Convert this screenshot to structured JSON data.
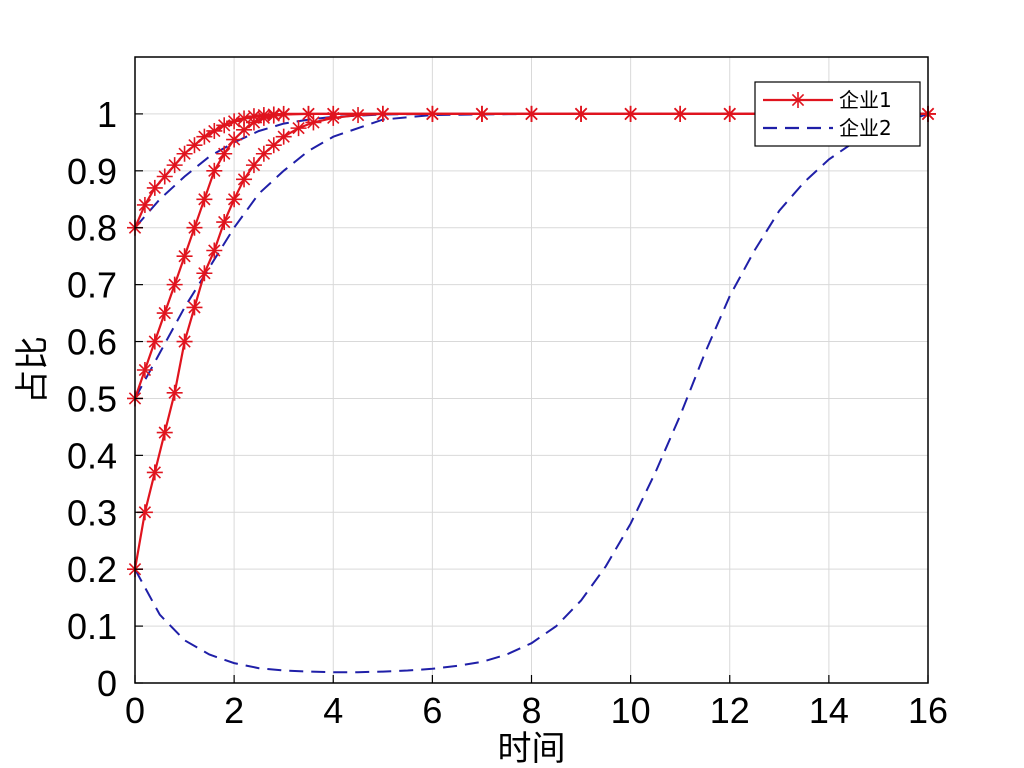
{
  "chart_data": {
    "type": "line",
    "xlabel": "时间",
    "ylabel": "占比",
    "xlim": [
      0,
      16
    ],
    "ylim": [
      0,
      1.1
    ],
    "x_ticks": [
      "0",
      "2",
      "4",
      "6",
      "8",
      "10",
      "12",
      "14",
      "16"
    ],
    "y_ticks": [
      "0",
      "0.1",
      "0.2",
      "0.3",
      "0.4",
      "0.5",
      "0.6",
      "0.7",
      "0.8",
      "0.9",
      "1"
    ],
    "grid": true,
    "legend_position": "top-right",
    "series": [
      {
        "name": "企业1",
        "color": "#e0141e",
        "style": "solid",
        "marker": "asterisk",
        "x": [
          0,
          0.2,
          0.4,
          0.6,
          0.8,
          1.0,
          1.2,
          1.4,
          1.6,
          1.8,
          2.0,
          2.2,
          2.4,
          2.6,
          2.8,
          3.0,
          3.5,
          4,
          5,
          6,
          7,
          8,
          9,
          10,
          11,
          12,
          13,
          14,
          15,
          16
        ],
        "y": [
          0.8,
          0.84,
          0.87,
          0.89,
          0.91,
          0.93,
          0.945,
          0.96,
          0.97,
          0.98,
          0.987,
          0.992,
          0.996,
          0.998,
          0.999,
          1.0,
          1.0,
          1.0,
          1.0,
          1.0,
          1.0,
          1.0,
          1.0,
          1.0,
          1.0,
          1.0,
          1.0,
          1.0,
          1.0,
          1.0
        ]
      },
      {
        "name": "企业1",
        "color": "#e0141e",
        "style": "solid",
        "marker": "asterisk",
        "x": [
          0,
          0.2,
          0.4,
          0.6,
          0.8,
          1.0,
          1.2,
          1.4,
          1.6,
          1.8,
          2.0,
          2.2,
          2.4,
          2.6,
          2.8,
          3.0,
          3.5,
          4,
          5,
          6,
          7,
          8,
          9,
          10,
          11,
          12,
          13,
          14,
          15,
          16
        ],
        "y": [
          0.5,
          0.55,
          0.6,
          0.65,
          0.7,
          0.75,
          0.8,
          0.85,
          0.9,
          0.93,
          0.955,
          0.972,
          0.985,
          0.993,
          0.997,
          0.999,
          1.0,
          1.0,
          1.0,
          1.0,
          1.0,
          1.0,
          1.0,
          1.0,
          1.0,
          1.0,
          1.0,
          1.0,
          1.0,
          1.0
        ]
      },
      {
        "name": "企业1",
        "color": "#e0141e",
        "style": "solid",
        "marker": "asterisk",
        "x": [
          0,
          0.2,
          0.4,
          0.6,
          0.8,
          1.0,
          1.2,
          1.4,
          1.6,
          1.8,
          2.0,
          2.2,
          2.4,
          2.6,
          2.8,
          3.0,
          3.3,
          3.6,
          4.0,
          4.5,
          5,
          6,
          7,
          8,
          9,
          10,
          11,
          12,
          13,
          14,
          15,
          16
        ],
        "y": [
          0.2,
          0.3,
          0.37,
          0.44,
          0.51,
          0.6,
          0.66,
          0.72,
          0.76,
          0.81,
          0.85,
          0.885,
          0.91,
          0.93,
          0.945,
          0.96,
          0.975,
          0.985,
          0.993,
          0.998,
          1.0,
          1.0,
          1.0,
          1.0,
          1.0,
          1.0,
          1.0,
          1.0,
          1.0,
          1.0,
          1.0,
          1.0
        ]
      },
      {
        "name": "企业2",
        "color": "#1f1fa8",
        "style": "dashed",
        "marker": "none",
        "x": [
          0,
          0.5,
          1.0,
          1.5,
          2.0,
          2.5,
          3.0,
          3.5,
          4,
          5,
          6,
          8,
          10,
          12,
          14,
          16
        ],
        "y": [
          0.8,
          0.85,
          0.89,
          0.925,
          0.95,
          0.97,
          0.983,
          0.99,
          0.995,
          0.999,
          1.0,
          1.0,
          1.0,
          1.0,
          1.0,
          1.0
        ]
      },
      {
        "name": "企业2",
        "color": "#1f1fa8",
        "style": "dashed",
        "marker": "none",
        "x": [
          0,
          0.5,
          1.0,
          1.5,
          2.0,
          2.5,
          3.0,
          3.5,
          4,
          5,
          6,
          8,
          10,
          12,
          14,
          16
        ],
        "y": [
          0.5,
          0.58,
          0.66,
          0.73,
          0.8,
          0.86,
          0.9,
          0.935,
          0.96,
          0.99,
          0.998,
          1.0,
          1.0,
          1.0,
          1.0,
          1.0
        ]
      },
      {
        "name": "企业2",
        "color": "#1f1fa8",
        "style": "dashed",
        "marker": "none",
        "x": [
          0,
          0.5,
          1,
          1.5,
          2,
          2.5,
          3,
          3.5,
          4,
          4.5,
          5,
          5.5,
          6,
          6.5,
          7,
          7.5,
          8,
          8.5,
          9,
          9.5,
          10,
          10.5,
          11,
          11.5,
          12,
          12.5,
          13,
          13.5,
          14,
          14.5,
          15,
          15.5,
          16
        ],
        "y": [
          0.2,
          0.12,
          0.075,
          0.05,
          0.035,
          0.026,
          0.022,
          0.02,
          0.019,
          0.019,
          0.02,
          0.022,
          0.025,
          0.03,
          0.037,
          0.05,
          0.07,
          0.1,
          0.145,
          0.205,
          0.28,
          0.37,
          0.47,
          0.58,
          0.68,
          0.76,
          0.83,
          0.88,
          0.92,
          0.95,
          0.97,
          0.985,
          1.0
        ]
      }
    ],
    "legend": [
      {
        "label": "企业1",
        "color": "#e0141e",
        "style": "solid",
        "marker": "asterisk"
      },
      {
        "label": "企业2",
        "color": "#1f1fa8",
        "style": "dashed",
        "marker": "none"
      }
    ]
  }
}
